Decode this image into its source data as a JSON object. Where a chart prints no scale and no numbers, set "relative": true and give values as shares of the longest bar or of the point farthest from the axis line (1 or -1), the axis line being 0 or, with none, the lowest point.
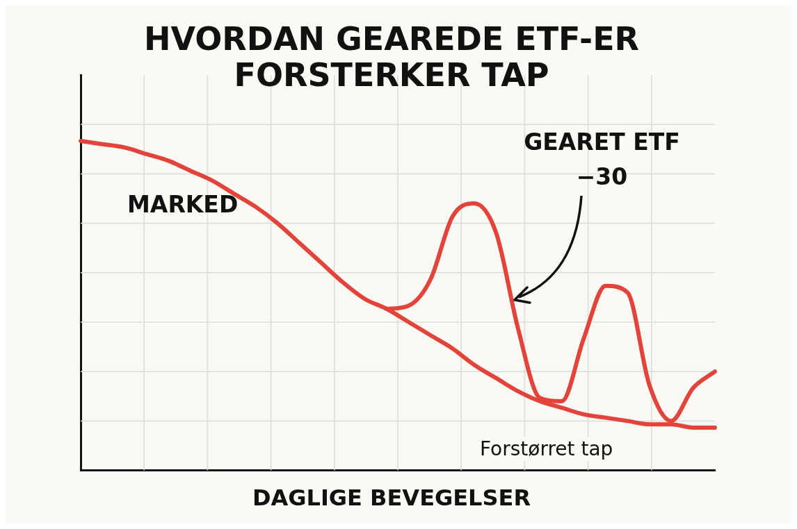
{
  "chart_data": {
    "type": "line",
    "title": "HVORDAN GEAREDE ETF-ER FORSTERKER TAP",
    "xlabel": "DAGLIGE BEVEGELSER",
    "relative": true,
    "grid": true,
    "legend": false,
    "marker": "none",
    "line_style": "solid",
    "categories": [
      null,
      null,
      null,
      null,
      null,
      null,
      null,
      null,
      null,
      null,
      null,
      null,
      null,
      null,
      null,
      null,
      null,
      null,
      null,
      null,
      null,
      null,
      null,
      null,
      null,
      null,
      null,
      null,
      null,
      null
    ],
    "series": [
      {
        "name": "MARKED",
        "color": "#e2443c",
        "values": [
          1.0,
          0.99,
          0.98,
          0.96,
          0.94,
          0.91,
          0.88,
          0.84,
          0.8,
          0.75,
          0.69,
          0.63,
          0.57,
          0.52,
          0.49,
          0.45,
          0.41,
          0.37,
          0.32,
          0.28,
          0.24,
          0.21,
          0.19,
          0.17,
          0.16,
          0.15,
          0.14,
          0.14,
          0.13,
          0.13
        ]
      },
      {
        "name": "GEARET ETF −30",
        "color": "#e2443c",
        "values": [
          null,
          null,
          null,
          null,
          null,
          null,
          null,
          null,
          null,
          null,
          null,
          null,
          null,
          null,
          0.49,
          0.5,
          0.58,
          0.77,
          0.81,
          0.72,
          0.43,
          0.22,
          0.21,
          0.4,
          0.56,
          0.54,
          0.26,
          0.15,
          0.25,
          0.3
        ]
      }
    ],
    "annotations": [
      "Forstørret tap"
    ]
  }
}
